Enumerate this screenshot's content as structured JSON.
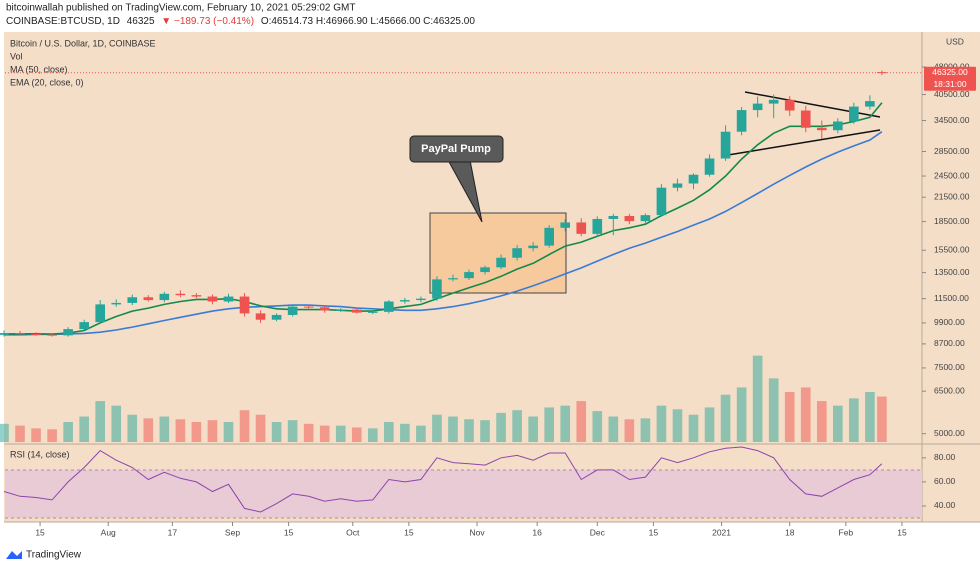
{
  "header": {
    "published": "bitcoinwallah published on TradingView.com, February 10, 2021 05:29:02 GMT",
    "symbol": "COINBASE:BTCUSD, 1D",
    "last": "46325",
    "change": "▼ −189.73 (−0.41%)",
    "ohlc": "O:46514.73 H:46966.90 L:45666.00 C:46325.00"
  },
  "chart_data": {
    "type": "candlestick",
    "title": "Bitcoin / U.S. Dollar, 1D, COINBASE",
    "currency": "USD",
    "up_color": "#26a69a",
    "down_color": "#ef5350",
    "x": [
      5,
      9,
      13,
      17,
      21,
      25,
      29,
      33,
      37,
      41,
      45,
      49,
      53,
      57,
      61,
      65,
      69,
      73,
      77,
      81,
      85,
      89,
      93,
      97,
      101,
      105,
      109,
      113,
      117,
      121,
      125,
      129,
      133,
      137,
      141,
      145,
      149,
      153,
      157,
      161,
      165,
      169,
      173,
      177,
      181,
      185,
      189,
      193,
      197,
      201,
      205,
      209,
      213,
      217,
      221,
      224
    ],
    "open": [
      9200,
      9300,
      9250,
      9210,
      9170,
      9530,
      9950,
      11100,
      11200,
      11600,
      11400,
      11850,
      11750,
      11650,
      11300,
      11650,
      10500,
      10100,
      10400,
      10950,
      10900,
      10700,
      10750,
      10550,
      10600,
      11300,
      11400,
      11500,
      12950,
      13050,
      13550,
      13950,
      14800,
      15700,
      15950,
      17800,
      18400,
      17150,
      18800,
      19150,
      18550,
      19250,
      22800,
      23400,
      24700,
      27300,
      32200,
      36800,
      38300,
      39200,
      36700,
      33000,
      32500,
      34300,
      37600,
      46514.73
    ],
    "high": [
      9450,
      9420,
      9350,
      9300,
      9650,
      10100,
      11400,
      11450,
      11800,
      11750,
      12000,
      12100,
      11900,
      11800,
      11850,
      11900,
      10700,
      10500,
      11100,
      11050,
      11000,
      10850,
      10850,
      10700,
      11400,
      11550,
      11650,
      13200,
      13350,
      13750,
      14100,
      15100,
      16000,
      16300,
      18100,
      18800,
      18900,
      19100,
      19400,
      19400,
      19450,
      23300,
      24100,
      24900,
      28000,
      33500,
      37500,
      40000,
      40500,
      40100,
      37800,
      34500,
      35000,
      38500,
      40300,
      46966.9
    ],
    "low": [
      9100,
      9150,
      9150,
      9100,
      9100,
      9450,
      9850,
      10950,
      11050,
      11300,
      11250,
      11600,
      11550,
      11100,
      11200,
      10300,
      9900,
      10000,
      10300,
      10750,
      10550,
      10600,
      10500,
      10450,
      10500,
      11150,
      11250,
      11350,
      12800,
      12900,
      13350,
      13800,
      14550,
      15400,
      15750,
      17400,
      16900,
      16800,
      17000,
      18200,
      18300,
      19050,
      22300,
      22600,
      24400,
      26900,
      31500,
      35200,
      35000,
      35500,
      32100,
      30800,
      31900,
      33800,
      36900,
      45666
    ],
    "close": [
      9300,
      9250,
      9210,
      9170,
      9530,
      9950,
      11100,
      11200,
      11600,
      11400,
      11850,
      11750,
      11650,
      11300,
      11650,
      10500,
      10100,
      10400,
      10950,
      10900,
      10700,
      10750,
      10550,
      10600,
      11300,
      11400,
      11500,
      12950,
      13050,
      13550,
      13950,
      14800,
      15700,
      15950,
      17800,
      18400,
      17150,
      18800,
      19150,
      18550,
      19250,
      22800,
      23400,
      24700,
      27300,
      32200,
      36800,
      38300,
      39200,
      36700,
      33000,
      32500,
      34300,
      37600,
      38900,
      46325
    ],
    "series": [
      {
        "name": "MA (50, close)",
        "color": "#3a7bd5",
        "values": [
          9200,
          9200,
          9220,
          9230,
          9250,
          9280,
          9350,
          9480,
          9650,
          9850,
          10050,
          10250,
          10450,
          10650,
          10800,
          10900,
          10950,
          11000,
          11050,
          11050,
          11000,
          10950,
          10850,
          10800,
          10750,
          10700,
          10700,
          10800,
          10950,
          11150,
          11400,
          11700,
          12050,
          12450,
          12900,
          13400,
          13900,
          14500,
          15100,
          15700,
          16200,
          16800,
          17400,
          18100,
          18800,
          19700,
          20800,
          22000,
          23300,
          24600,
          25900,
          27200,
          28400,
          29500,
          30600,
          32200
        ]
      },
      {
        "name": "EMA (20, close, 0)",
        "color": "#138a4a",
        "values": [
          9250,
          9260,
          9260,
          9240,
          9300,
          9450,
          9900,
          10300,
          10650,
          10850,
          11100,
          11300,
          11450,
          11450,
          11500,
          11300,
          11000,
          10800,
          10750,
          10750,
          10750,
          10700,
          10650,
          10650,
          10800,
          10950,
          11100,
          11500,
          11900,
          12300,
          12700,
          13200,
          13800,
          14300,
          15100,
          15900,
          16300,
          16900,
          17500,
          17800,
          18200,
          19200,
          20100,
          21100,
          22500,
          24500,
          27200,
          29700,
          31900,
          33300,
          33300,
          33300,
          33600,
          34300,
          35200,
          38500
        ]
      }
    ],
    "volume": {
      "name": "Vol",
      "ylim": [
        0,
        110
      ],
      "values": [
        20,
        18,
        15,
        14,
        22,
        28,
        45,
        40,
        30,
        26,
        28,
        25,
        22,
        24,
        22,
        35,
        30,
        22,
        24,
        20,
        18,
        18,
        16,
        15,
        22,
        20,
        18,
        30,
        28,
        25,
        24,
        32,
        35,
        28,
        38,
        40,
        45,
        34,
        28,
        25,
        26,
        40,
        36,
        30,
        38,
        52,
        60,
        95,
        70,
        55,
        60,
        45,
        40,
        48,
        55,
        50
      ]
    },
    "rsi": {
      "name": "RSI (14, close)",
      "color": "#8e44ad",
      "ylim": [
        30,
        89
      ],
      "yticks": [
        {
          "value": 80,
          "label": "80.00"
        },
        {
          "value": 60,
          "label": "60.00"
        },
        {
          "value": 40,
          "label": "40.00"
        }
      ],
      "values": [
        52,
        48,
        47,
        45,
        60,
        72,
        86,
        78,
        72,
        62,
        68,
        63,
        60,
        52,
        58,
        38,
        35,
        42,
        50,
        48,
        44,
        46,
        44,
        45,
        62,
        60,
        62,
        80,
        76,
        75,
        74,
        80,
        82,
        78,
        84,
        84,
        62,
        70,
        70,
        62,
        64,
        80,
        76,
        80,
        85,
        88,
        89,
        86,
        80,
        62,
        50,
        48,
        55,
        62,
        66,
        75
      ]
    },
    "ylog": true,
    "ylim": [
      4750,
      59200
    ],
    "yticks": [
      {
        "value": 48000,
        "label": "48000.00"
      },
      {
        "value": 40500,
        "label": "40500.00"
      },
      {
        "value": 34500,
        "label": "34500.00"
      },
      {
        "value": 28500,
        "label": "28500.00"
      },
      {
        "value": 24500,
        "label": "24500.00"
      },
      {
        "value": 21500,
        "label": "21500.00"
      },
      {
        "value": 18500,
        "label": "18500.00"
      },
      {
        "value": 15500,
        "label": "15500.00"
      },
      {
        "value": 13500,
        "label": "13500.00"
      },
      {
        "value": 11500,
        "label": "11500.00"
      },
      {
        "value": 9900,
        "label": "9900.00"
      },
      {
        "value": 8700,
        "label": "8700.00"
      },
      {
        "value": 7500,
        "label": "7500.00"
      },
      {
        "value": 6500,
        "label": "6500.00"
      },
      {
        "value": 5000,
        "label": "5000.00"
      }
    ],
    "xlim": [
      5.25,
      234
    ],
    "xticks": [
      {
        "value": 14,
        "label": "15"
      },
      {
        "value": 31,
        "label": "Aug"
      },
      {
        "value": 47,
        "label": "17"
      },
      {
        "value": 62,
        "label": "Sep"
      },
      {
        "value": 76,
        "label": "15"
      },
      {
        "value": 92,
        "label": "Oct"
      },
      {
        "value": 106,
        "label": "15"
      },
      {
        "value": 123,
        "label": "Nov"
      },
      {
        "value": 138,
        "label": "16"
      },
      {
        "value": 153,
        "label": "Dec"
      },
      {
        "value": 167,
        "label": "15"
      },
      {
        "value": 184,
        "label": "2021"
      },
      {
        "value": 201,
        "label": "18"
      },
      {
        "value": 215,
        "label": "Feb"
      },
      {
        "value": 229,
        "label": "15"
      }
    ],
    "last_price": {
      "label": "46325.00",
      "timer": "18:31:00"
    },
    "annotations": [
      {
        "text": "PayPal Pump"
      }
    ]
  },
  "footer": {
    "brand": "TradingView"
  }
}
